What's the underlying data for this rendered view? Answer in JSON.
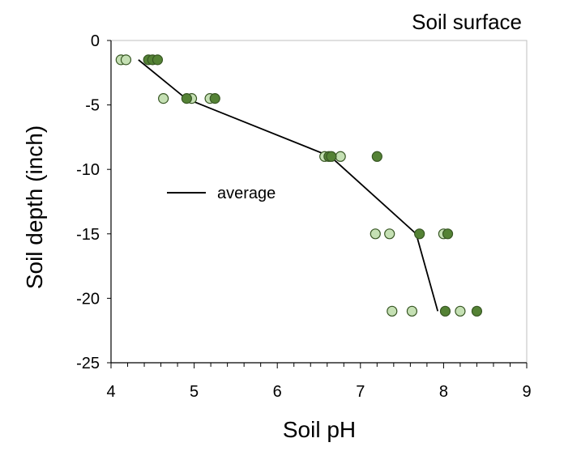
{
  "chart_data": {
    "type": "scatter",
    "title": "",
    "annotation": "Soil surface",
    "xlabel": "Soil pH",
    "ylabel": "Soil depth (inch)",
    "xlim": [
      4,
      9
    ],
    "ylim": [
      -25,
      0
    ],
    "xticks": [
      4,
      5,
      6,
      7,
      8,
      9
    ],
    "yticks": [
      0,
      -5,
      -10,
      -15,
      -20,
      -25
    ],
    "x_minor_step": 0.2,
    "grid": false,
    "legend": {
      "position": "left-middle",
      "entries": [
        "average"
      ]
    },
    "colors": {
      "light_points": "#c5e0b4",
      "dark_points": "#548235",
      "point_stroke": "#375623",
      "average_line": "#000000"
    },
    "series": [
      {
        "style": "light",
        "points": [
          {
            "x": 4.12,
            "y": -1.5
          },
          {
            "x": 4.18,
            "y": -1.5
          },
          {
            "x": 4.63,
            "y": -4.5
          },
          {
            "x": 4.97,
            "y": -4.5
          },
          {
            "x": 5.19,
            "y": -4.5
          },
          {
            "x": 6.57,
            "y": -9
          },
          {
            "x": 6.76,
            "y": -9
          },
          {
            "x": 7.18,
            "y": -15
          },
          {
            "x": 7.35,
            "y": -15
          },
          {
            "x": 8.0,
            "y": -15
          },
          {
            "x": 7.38,
            "y": -21
          },
          {
            "x": 7.62,
            "y": -21
          },
          {
            "x": 8.2,
            "y": -21
          }
        ]
      },
      {
        "style": "dark",
        "points": [
          {
            "x": 4.45,
            "y": -1.5
          },
          {
            "x": 4.5,
            "y": -1.5
          },
          {
            "x": 4.56,
            "y": -1.5
          },
          {
            "x": 4.91,
            "y": -4.5
          },
          {
            "x": 5.25,
            "y": -4.5
          },
          {
            "x": 6.62,
            "y": -9
          },
          {
            "x": 6.65,
            "y": -9
          },
          {
            "x": 7.2,
            "y": -9
          },
          {
            "x": 7.71,
            "y": -15
          },
          {
            "x": 8.05,
            "y": -15
          },
          {
            "x": 8.02,
            "y": -21
          },
          {
            "x": 8.4,
            "y": -21
          }
        ]
      },
      {
        "name": "average",
        "style": "line",
        "points": [
          {
            "x": 4.33,
            "y": -1.5
          },
          {
            "x": 4.9,
            "y": -4.5
          },
          {
            "x": 6.64,
            "y": -9
          },
          {
            "x": 7.67,
            "y": -15
          },
          {
            "x": 7.93,
            "y": -21
          }
        ]
      }
    ]
  }
}
